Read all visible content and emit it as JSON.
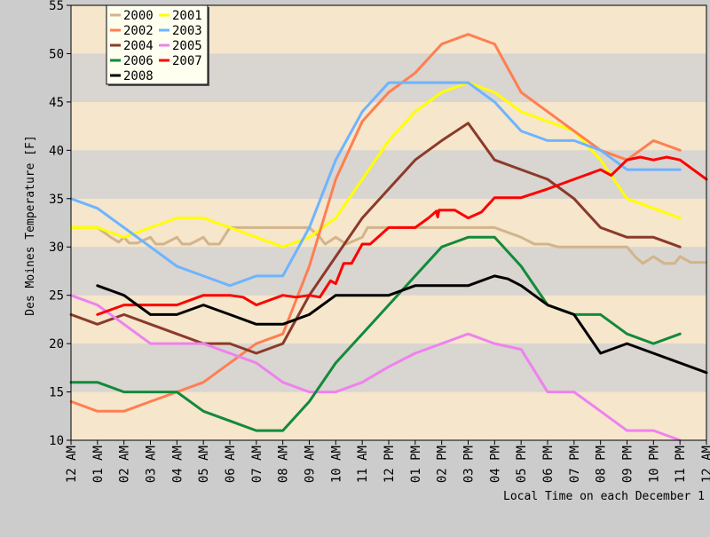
{
  "chart_data": {
    "type": "line",
    "title": "",
    "xlabel": "Local Time on each December 1",
    "ylabel": "Des Moines Temperature [F]",
    "ylim": [
      10,
      55
    ],
    "yticks": [
      10,
      15,
      20,
      25,
      30,
      35,
      40,
      45,
      50,
      55
    ],
    "xlim": [
      0,
      24
    ],
    "xticks": [
      {
        "x": 0,
        "hour": "12",
        "ampm": "AM"
      },
      {
        "x": 1,
        "hour": "01",
        "ampm": "AM"
      },
      {
        "x": 2,
        "hour": "02",
        "ampm": "AM"
      },
      {
        "x": 3,
        "hour": "03",
        "ampm": "AM"
      },
      {
        "x": 4,
        "hour": "04",
        "ampm": "AM"
      },
      {
        "x": 5,
        "hour": "05",
        "ampm": "AM"
      },
      {
        "x": 6,
        "hour": "06",
        "ampm": "AM"
      },
      {
        "x": 7,
        "hour": "07",
        "ampm": "AM"
      },
      {
        "x": 8,
        "hour": "08",
        "ampm": "AM"
      },
      {
        "x": 9,
        "hour": "09",
        "ampm": "AM"
      },
      {
        "x": 10,
        "hour": "10",
        "ampm": "AM"
      },
      {
        "x": 11,
        "hour": "11",
        "ampm": "AM"
      },
      {
        "x": 12,
        "hour": "12",
        "ampm": "PM"
      },
      {
        "x": 13,
        "hour": "01",
        "ampm": "PM"
      },
      {
        "x": 14,
        "hour": "02",
        "ampm": "PM"
      },
      {
        "x": 15,
        "hour": "03",
        "ampm": "PM"
      },
      {
        "x": 16,
        "hour": "04",
        "ampm": "PM"
      },
      {
        "x": 17,
        "hour": "05",
        "ampm": "PM"
      },
      {
        "x": 18,
        "hour": "06",
        "ampm": "PM"
      },
      {
        "x": 19,
        "hour": "07",
        "ampm": "PM"
      },
      {
        "x": 20,
        "hour": "08",
        "ampm": "PM"
      },
      {
        "x": 21,
        "hour": "09",
        "ampm": "PM"
      },
      {
        "x": 22,
        "hour": "10",
        "ampm": "PM"
      },
      {
        "x": 23,
        "hour": "11",
        "ampm": "PM"
      },
      {
        "x": 24,
        "hour": "12",
        "ampm": "AM"
      }
    ],
    "band_colors": [
      "#f5e6cc",
      "#d9d5d0"
    ],
    "legend_position": "top-left",
    "series": [
      {
        "name": "2000",
        "color": "#d2b48c",
        "points": [
          [
            0,
            32
          ],
          [
            1,
            32
          ],
          [
            1.5,
            31
          ],
          [
            1.8,
            30.5
          ],
          [
            2,
            31
          ],
          [
            2.2,
            30.4
          ],
          [
            2.5,
            30.4
          ],
          [
            3,
            31
          ],
          [
            3.2,
            30.3
          ],
          [
            3.5,
            30.3
          ],
          [
            4,
            31
          ],
          [
            4.2,
            30.3
          ],
          [
            4.5,
            30.3
          ],
          [
            5,
            31
          ],
          [
            5.2,
            30.3
          ],
          [
            5.6,
            30.3
          ],
          [
            6,
            32
          ],
          [
            7,
            32
          ],
          [
            8,
            32
          ],
          [
            9,
            32
          ],
          [
            9.4,
            31
          ],
          [
            9.6,
            30.3
          ],
          [
            10,
            31
          ],
          [
            10.4,
            30.3
          ],
          [
            11,
            31
          ],
          [
            11.2,
            32
          ],
          [
            12,
            32
          ],
          [
            13,
            32
          ],
          [
            14,
            32
          ],
          [
            15,
            32
          ],
          [
            16,
            32
          ],
          [
            17,
            31
          ],
          [
            17.5,
            30.3
          ],
          [
            18,
            30.3
          ],
          [
            18.4,
            30
          ],
          [
            19,
            30
          ],
          [
            20,
            30
          ],
          [
            21,
            30
          ],
          [
            21.3,
            29
          ],
          [
            21.6,
            28.3
          ],
          [
            22,
            29
          ],
          [
            22.4,
            28.3
          ],
          [
            22.8,
            28.3
          ],
          [
            23,
            29
          ],
          [
            23.4,
            28.4
          ],
          [
            24,
            28.4
          ]
        ]
      },
      {
        "name": "2001",
        "color": "#ffff00",
        "points": [
          [
            0,
            32
          ],
          [
            1,
            32
          ],
          [
            2,
            31
          ],
          [
            3,
            32
          ],
          [
            4,
            33
          ],
          [
            5,
            33
          ],
          [
            6,
            32
          ],
          [
            7,
            31
          ],
          [
            8,
            30
          ],
          [
            9,
            31
          ],
          [
            10,
            33
          ],
          [
            11,
            37
          ],
          [
            12,
            41
          ],
          [
            13,
            44
          ],
          [
            14,
            46
          ],
          [
            15,
            47
          ],
          [
            16,
            46
          ],
          [
            17,
            44
          ],
          [
            18,
            43
          ],
          [
            19,
            42
          ],
          [
            20,
            39
          ],
          [
            21,
            35
          ],
          [
            22,
            34
          ],
          [
            23,
            33
          ]
        ]
      },
      {
        "name": "2002",
        "color": "#ff7f50",
        "points": [
          [
            0,
            14
          ],
          [
            1,
            13
          ],
          [
            2,
            13
          ],
          [
            3,
            14
          ],
          [
            4,
            15
          ],
          [
            5,
            16
          ],
          [
            6,
            18
          ],
          [
            7,
            20
          ],
          [
            8,
            21
          ],
          [
            9,
            28
          ],
          [
            10,
            37
          ],
          [
            11,
            43
          ],
          [
            12,
            46
          ],
          [
            13,
            48
          ],
          [
            14,
            51
          ],
          [
            15,
            52
          ],
          [
            16,
            51
          ],
          [
            17,
            46
          ],
          [
            18,
            44
          ],
          [
            19,
            42
          ],
          [
            20,
            40
          ],
          [
            21,
            39
          ],
          [
            22,
            41
          ],
          [
            23,
            40
          ]
        ]
      },
      {
        "name": "2003",
        "color": "#6eb4ff",
        "points": [
          [
            0,
            35
          ],
          [
            1,
            34
          ],
          [
            2,
            32
          ],
          [
            3,
            30
          ],
          [
            4,
            28
          ],
          [
            5,
            27
          ],
          [
            6,
            26
          ],
          [
            7,
            27
          ],
          [
            8,
            27
          ],
          [
            9,
            32
          ],
          [
            10,
            39
          ],
          [
            11,
            44
          ],
          [
            12,
            47
          ],
          [
            13,
            47
          ],
          [
            14,
            47
          ],
          [
            15,
            47
          ],
          [
            16,
            45
          ],
          [
            17,
            42
          ],
          [
            18,
            41
          ],
          [
            19,
            41
          ],
          [
            20,
            40
          ],
          [
            21,
            38
          ],
          [
            22,
            38
          ],
          [
            23,
            38
          ]
        ]
      },
      {
        "name": "2004",
        "color": "#8b3a2a",
        "points": [
          [
            0,
            23
          ],
          [
            1,
            22
          ],
          [
            2,
            23
          ],
          [
            3,
            22
          ],
          [
            4,
            21
          ],
          [
            5,
            20
          ],
          [
            6,
            20
          ],
          [
            7,
            19
          ],
          [
            8,
            20
          ],
          [
            9,
            25
          ],
          [
            10,
            29
          ],
          [
            11,
            33
          ],
          [
            12,
            36
          ],
          [
            13,
            39
          ],
          [
            14,
            41
          ],
          [
            15,
            42.8
          ],
          [
            16,
            39
          ],
          [
            17,
            38
          ],
          [
            18,
            37
          ],
          [
            19,
            35
          ],
          [
            20,
            32
          ],
          [
            21,
            31
          ],
          [
            22,
            31
          ],
          [
            23,
            30
          ]
        ]
      },
      {
        "name": "2005",
        "color": "#ee82ee",
        "points": [
          [
            0,
            25
          ],
          [
            1,
            24
          ],
          [
            2,
            22
          ],
          [
            3,
            20
          ],
          [
            4,
            20
          ],
          [
            5,
            20
          ],
          [
            6,
            19
          ],
          [
            7,
            18
          ],
          [
            8,
            16
          ],
          [
            9,
            15
          ],
          [
            10,
            15
          ],
          [
            11,
            16
          ],
          [
            12,
            17.6
          ],
          [
            13,
            19
          ],
          [
            14,
            20
          ],
          [
            15,
            21
          ],
          [
            16,
            20
          ],
          [
            17,
            19.4
          ],
          [
            18,
            15
          ],
          [
            19,
            15
          ],
          [
            20,
            13
          ],
          [
            21,
            11
          ],
          [
            22,
            11
          ],
          [
            23,
            10
          ]
        ]
      },
      {
        "name": "2006",
        "color": "#138a3a",
        "points": [
          [
            0,
            16
          ],
          [
            1,
            16
          ],
          [
            2,
            15
          ],
          [
            3,
            15
          ],
          [
            4,
            15
          ],
          [
            5,
            13
          ],
          [
            6,
            12
          ],
          [
            7,
            11
          ],
          [
            8,
            11
          ],
          [
            9,
            14
          ],
          [
            10,
            18
          ],
          [
            11,
            21
          ],
          [
            12,
            24
          ],
          [
            13,
            27
          ],
          [
            14,
            30
          ],
          [
            15,
            31
          ],
          [
            16,
            31
          ],
          [
            17,
            28
          ],
          [
            18,
            24
          ],
          [
            19,
            23
          ],
          [
            20,
            23
          ],
          [
            21,
            21
          ],
          [
            22,
            20
          ],
          [
            23,
            21
          ]
        ]
      },
      {
        "name": "2007",
        "color": "#ff0000",
        "points": [
          [
            1,
            23
          ],
          [
            2,
            24
          ],
          [
            3,
            24
          ],
          [
            4,
            24
          ],
          [
            5,
            25
          ],
          [
            6,
            25
          ],
          [
            6.5,
            24.8
          ],
          [
            7,
            24
          ],
          [
            8,
            25
          ],
          [
            8.5,
            24.8
          ],
          [
            9,
            25
          ],
          [
            9.4,
            24.8
          ],
          [
            9.8,
            26.5
          ],
          [
            10,
            26.2
          ],
          [
            10.3,
            28.3
          ],
          [
            10.6,
            28.3
          ],
          [
            11,
            30.3
          ],
          [
            11.3,
            30.3
          ],
          [
            12,
            32
          ],
          [
            13,
            32
          ],
          [
            13.5,
            33
          ],
          [
            13.8,
            33.7
          ],
          [
            13.85,
            33.1
          ],
          [
            13.9,
            33.8
          ],
          [
            14,
            33.8
          ],
          [
            14.5,
            33.8
          ],
          [
            15,
            33
          ],
          [
            15.5,
            33.6
          ],
          [
            16,
            35.1
          ],
          [
            17,
            35.1
          ],
          [
            18,
            36
          ],
          [
            19,
            37
          ],
          [
            20,
            38
          ],
          [
            20.4,
            37.4
          ],
          [
            21,
            39
          ],
          [
            21.5,
            39.3
          ],
          [
            22,
            39
          ],
          [
            22.5,
            39.3
          ],
          [
            23,
            39
          ],
          [
            24,
            37
          ]
        ]
      },
      {
        "name": "2008",
        "color": "#000000",
        "points": [
          [
            1,
            26
          ],
          [
            2,
            25
          ],
          [
            3,
            23
          ],
          [
            4,
            23
          ],
          [
            5,
            24
          ],
          [
            6,
            23
          ],
          [
            7,
            22
          ],
          [
            8,
            22
          ],
          [
            9,
            23
          ],
          [
            10,
            25
          ],
          [
            11,
            25
          ],
          [
            12,
            25
          ],
          [
            13,
            26
          ],
          [
            14,
            26
          ],
          [
            15,
            26
          ],
          [
            16,
            27
          ],
          [
            16.5,
            26.7
          ],
          [
            17,
            26
          ],
          [
            18,
            24
          ],
          [
            19,
            23
          ],
          [
            20,
            19
          ],
          [
            21,
            20
          ],
          [
            22,
            19
          ],
          [
            23,
            18
          ],
          [
            24,
            17
          ]
        ]
      }
    ]
  }
}
